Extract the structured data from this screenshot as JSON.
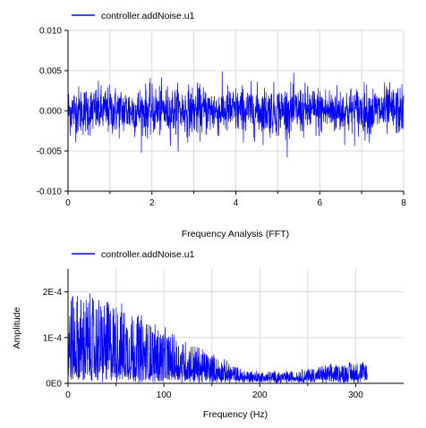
{
  "colors": {
    "series": "#0000ff",
    "grid": "#d8d8d8",
    "axis": "#000000"
  },
  "chart_data": [
    {
      "type": "line",
      "title": "",
      "xlabel": "Frequency Analysis (FFT)",
      "ylabel": "",
      "xlim": [
        0,
        8
      ],
      "ylim": [
        -0.01,
        0.01
      ],
      "xticks": [
        "0",
        "2",
        "4",
        "6",
        "8"
      ],
      "yticks": [
        "-0.010",
        "-0.005",
        "0.000",
        "0.005",
        "0.010"
      ],
      "grid": true,
      "legend": "top-left",
      "series": [
        {
          "name": "controller.addNoise.u1",
          "pattern": "noise",
          "mean": 0.0,
          "typical_amplitude": 0.0015,
          "peak_max": 0.0057,
          "peak_min": -0.0058
        }
      ]
    },
    {
      "type": "line",
      "title": "",
      "xlabel": "Frequency (Hz)",
      "ylabel": "Amplitude",
      "xlim": [
        0,
        350
      ],
      "ylim": [
        0,
        0.00025
      ],
      "xticks": [
        "0",
        "100",
        "200",
        "300"
      ],
      "yticks": [
        "0E0",
        "1E-4",
        "2E-4"
      ],
      "grid": true,
      "legend": "top-left",
      "series": [
        {
          "name": "controller.addNoise.u1",
          "pattern": "spectrum",
          "envelope_x": [
            0,
            25,
            50,
            100,
            150,
            180,
            200,
            230,
            260,
            290,
            312
          ],
          "envelope_max_y": [
            0.00021,
            0.0002,
            0.00019,
            0.000125,
            7e-05,
            3.5e-05,
            3e-05,
            3e-05,
            4e-05,
            5e-05,
            5.5e-05
          ],
          "floor_y": [
            2e-05,
            2e-05,
            2e-05,
            1.5e-05,
            1e-05,
            8e-06,
            8e-06,
            8e-06,
            1e-05,
            1e-05,
            1e-05
          ]
        }
      ]
    }
  ]
}
